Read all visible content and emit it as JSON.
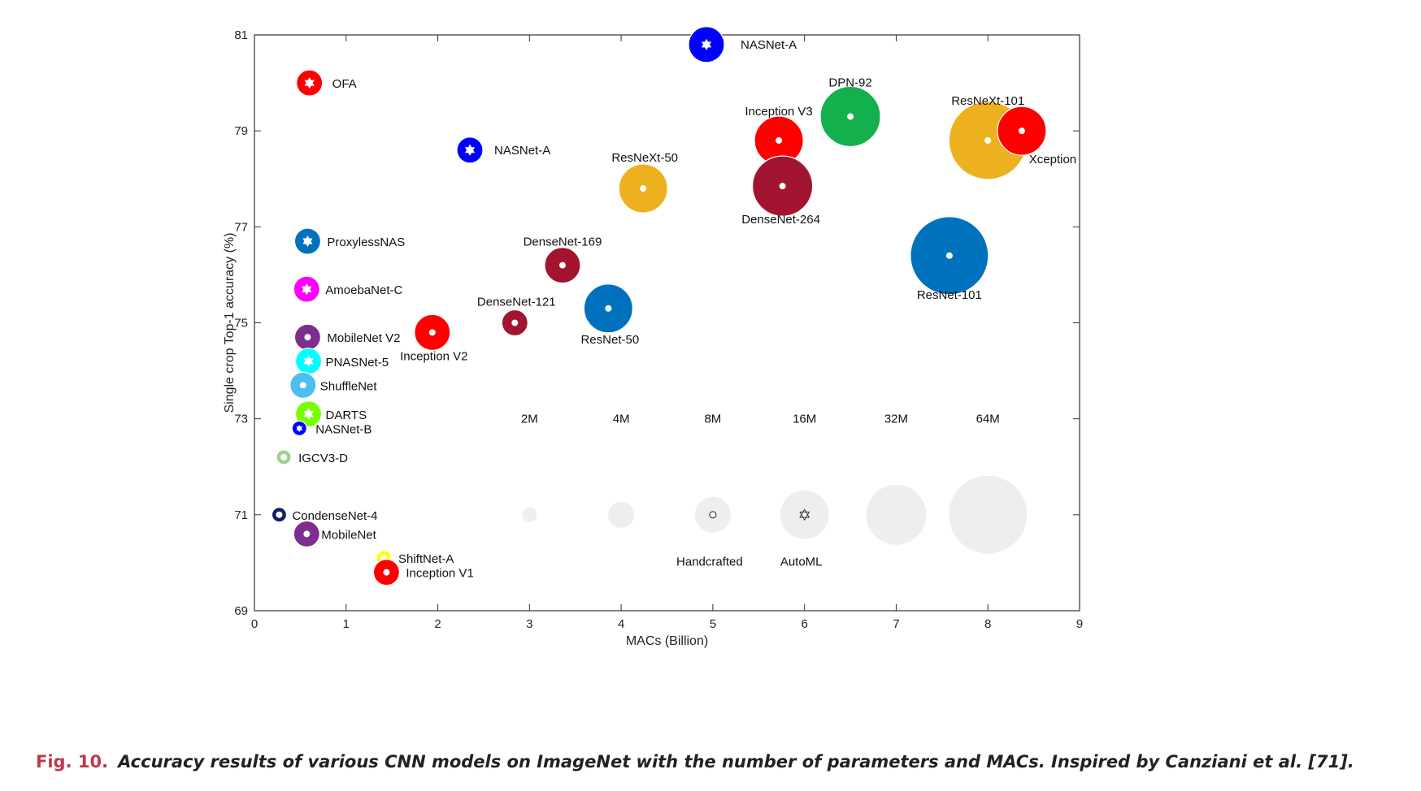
{
  "chart_data": {
    "type": "scatter",
    "xlabel": "MACs (Billion)",
    "ylabel": "Single crop Top-1 accuracy (%)",
    "xlim": [
      0,
      9
    ],
    "ylim": [
      69,
      81
    ],
    "x_ticks": [
      "0",
      "1",
      "2",
      "3",
      "4",
      "5",
      "6",
      "7",
      "8",
      "9"
    ],
    "y_ticks": [
      "69",
      "71",
      "73",
      "75",
      "77",
      "79",
      "81"
    ],
    "grid": false,
    "colors": {
      "red": "#ff0000",
      "blue": "#0000ff",
      "steel": "#0072bd",
      "gold": "#edb120",
      "crimson": "#a2142f",
      "green": "#14b04d",
      "purple": "#7e2f8e",
      "magenta": "#ff00ff",
      "cyan": "#00ffff",
      "sky": "#4dbeee",
      "lime": "#77ff00",
      "sage": "#9fd08a",
      "navy": "#0c2163",
      "yellow": "#ffff00",
      "legend_gray": "#eeeeee"
    },
    "points": [
      {
        "name": "NASNet-A",
        "x": 4.93,
        "y": 80.8,
        "size": "8M",
        "color": "blue",
        "kind": "AutoML"
      },
      {
        "name": "OFA",
        "x": 0.6,
        "y": 80.0,
        "size": "4M",
        "color": "red",
        "kind": "AutoML"
      },
      {
        "name": "DPN-92",
        "x": 6.5,
        "y": 79.3,
        "size": "32M",
        "color": "green",
        "kind": "Handcrafted"
      },
      {
        "name": "Inception V3",
        "x": 5.72,
        "y": 78.8,
        "size": "16M",
        "color": "red",
        "kind": "Handcrafted"
      },
      {
        "name": "ResNeXt-101",
        "x": 8.0,
        "y": 78.8,
        "size": "64M",
        "color": "gold",
        "kind": "Handcrafted"
      },
      {
        "name": "Xception",
        "x": 8.37,
        "y": 79.0,
        "size": "16M",
        "color": "red",
        "kind": "Handcrafted"
      },
      {
        "name": "NASNet-A",
        "x": 2.35,
        "y": 78.6,
        "size": "4M",
        "color": "blue",
        "kind": "AutoML"
      },
      {
        "name": "ResNeXt-50",
        "x": 4.24,
        "y": 77.8,
        "size": "16M",
        "color": "gold",
        "kind": "Handcrafted"
      },
      {
        "name": "DenseNet-264",
        "x": 5.76,
        "y": 77.85,
        "size": "32M",
        "color": "crimson",
        "kind": "Handcrafted"
      },
      {
        "name": "ProxylessNAS",
        "x": 0.58,
        "y": 76.7,
        "size": "4M",
        "color": "steel",
        "kind": "AutoML"
      },
      {
        "name": "DenseNet-169",
        "x": 3.36,
        "y": 76.2,
        "size": "8M",
        "color": "crimson",
        "kind": "Handcrafted"
      },
      {
        "name": "ResNet-101",
        "x": 7.58,
        "y": 76.4,
        "size": "64M",
        "color": "steel",
        "kind": "Handcrafted"
      },
      {
        "name": "AmoebaNet-C",
        "x": 0.57,
        "y": 75.7,
        "size": "4M",
        "color": "magenta",
        "kind": "AutoML"
      },
      {
        "name": "ResNet-50",
        "x": 3.86,
        "y": 75.3,
        "size": "16M",
        "color": "steel",
        "kind": "Handcrafted"
      },
      {
        "name": "DenseNet-121",
        "x": 2.84,
        "y": 75.0,
        "size": "4M",
        "color": "crimson",
        "kind": "Handcrafted"
      },
      {
        "name": "Inception V2",
        "x": 1.94,
        "y": 74.8,
        "size": "8M",
        "color": "red",
        "kind": "Handcrafted"
      },
      {
        "name": "MobileNet V2",
        "x": 0.58,
        "y": 74.7,
        "size": "4M",
        "color": "purple",
        "kind": "Handcrafted"
      },
      {
        "name": "PNASNet-5",
        "x": 0.59,
        "y": 74.2,
        "size": "4M",
        "color": "cyan",
        "kind": "AutoML"
      },
      {
        "name": "ShuffleNet",
        "x": 0.53,
        "y": 73.7,
        "size": "4M",
        "color": "sky",
        "kind": "Handcrafted"
      },
      {
        "name": "DARTS",
        "x": 0.59,
        "y": 73.1,
        "size": "4M",
        "color": "lime",
        "kind": "AutoML"
      },
      {
        "name": "NASNet-B",
        "x": 0.49,
        "y": 72.8,
        "size": "2M",
        "color": "blue",
        "kind": "AutoML"
      },
      {
        "name": "IGCV3-D",
        "x": 0.32,
        "y": 72.2,
        "size": "2M",
        "color": "sage",
        "kind": "Handcrafted"
      },
      {
        "name": "CondenseNet-4",
        "x": 0.27,
        "y": 71.0,
        "size": "2M",
        "color": "navy",
        "kind": "Handcrafted"
      },
      {
        "name": "MobileNet",
        "x": 0.57,
        "y": 70.6,
        "size": "4M",
        "color": "purple",
        "kind": "Handcrafted"
      },
      {
        "name": "ShiftNet-A",
        "x": 1.41,
        "y": 70.1,
        "size": "2M",
        "color": "yellow",
        "kind": "Handcrafted"
      },
      {
        "name": "Inception V1",
        "x": 1.44,
        "y": 69.8,
        "size": "4M",
        "color": "red",
        "kind": "Handcrafted"
      }
    ],
    "size_legend": [
      {
        "label": "2M",
        "x": 3,
        "y": 71
      },
      {
        "label": "4M",
        "x": 4,
        "y": 71
      },
      {
        "label": "8M",
        "x": 5,
        "y": 71
      },
      {
        "label": "16M",
        "x": 6,
        "y": 71
      },
      {
        "label": "32M",
        "x": 7,
        "y": 71
      },
      {
        "label": "64M",
        "x": 8,
        "y": 71
      }
    ],
    "size_labels_y": 73,
    "kind_legend": [
      {
        "label": "Handcrafted",
        "size": "8M",
        "marker": "circle"
      },
      {
        "label": "AutoML",
        "size": "16M",
        "marker": "star"
      }
    ]
  },
  "caption": {
    "fig_num": "Fig. 10.",
    "text": "Accuracy results of various CNN models on ImageNet with the number of parameters and MACs. Inspired by Canziani et al. [71]."
  }
}
